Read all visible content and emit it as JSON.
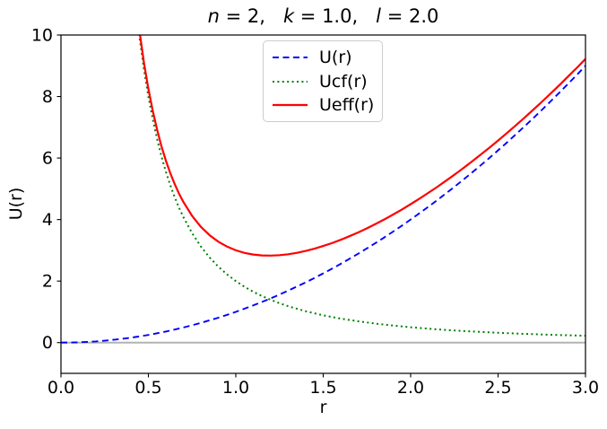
{
  "title": {
    "text": "n = 2,  k = 1.0,  l = 2.0",
    "separator": ",   ",
    "parts": [
      {
        "symbol": "n",
        "value": "2"
      },
      {
        "symbol": "k",
        "value": "1.0"
      },
      {
        "symbol": "l",
        "value": "2.0"
      }
    ]
  },
  "chart_data": {
    "type": "line",
    "title": "n = 2,  k = 1.0,  l = 2.0",
    "xlabel": "r",
    "ylabel": "U(r)",
    "xlim": [
      0.0,
      3.0
    ],
    "ylim": [
      -1,
      10
    ],
    "xticks": [
      0.0,
      0.5,
      1.0,
      1.5,
      2.0,
      2.5,
      3.0
    ],
    "xtick_labels": [
      "0.0",
      "0.5",
      "1.0",
      "1.5",
      "2.0",
      "2.5",
      "3.0"
    ],
    "yticks": [
      0,
      2,
      4,
      6,
      8,
      10
    ],
    "ytick_labels": [
      "0",
      "2",
      "4",
      "6",
      "8",
      "10"
    ],
    "grid": false,
    "legend": {
      "position": "upper center",
      "border_color": "#cccccc"
    },
    "zero_line": {
      "y": 0,
      "color": "#b3b3b3"
    },
    "parameters": {
      "n": 2,
      "k": 1.0,
      "l": 2.0
    },
    "x": [
      0,
      0.05,
      0.1,
      0.15,
      0.2,
      0.25,
      0.3,
      0.325,
      0.35,
      0.375,
      0.4,
      0.425,
      0.45,
      0.475,
      0.5,
      0.525,
      0.55,
      0.575,
      0.6,
      0.625,
      0.65,
      0.675,
      0.7,
      0.75,
      0.8,
      0.85,
      0.9,
      0.95,
      1.0,
      1.05,
      1.1,
      1.15,
      1.2,
      1.25,
      1.3,
      1.35,
      1.4,
      1.45,
      1.5,
      1.55,
      1.6,
      1.65,
      1.7,
      1.75,
      1.8,
      1.85,
      1.9,
      1.95,
      2.0,
      2.05,
      2.1,
      2.15,
      2.2,
      2.25,
      2.3,
      2.35,
      2.4,
      2.45,
      2.5,
      2.55,
      2.6,
      2.65,
      2.7,
      2.75,
      2.8,
      2.85,
      2.9,
      2.95,
      3.0
    ],
    "series": [
      {
        "name": "U(r)",
        "color": "#0000ff",
        "line_style": "dashed",
        "values": [
          0,
          0.003,
          0.01,
          0.023,
          0.04,
          0.063,
          0.09,
          0.106,
          0.123,
          0.141,
          0.16,
          0.181,
          0.203,
          0.226,
          0.25,
          0.276,
          0.303,
          0.331,
          0.36,
          0.391,
          0.423,
          0.456,
          0.49,
          0.563,
          0.64,
          0.723,
          0.81,
          0.903,
          1.0,
          1.103,
          1.21,
          1.323,
          1.44,
          1.563,
          1.69,
          1.823,
          1.96,
          2.103,
          2.25,
          2.403,
          2.56,
          2.723,
          2.89,
          3.063,
          3.24,
          3.423,
          3.61,
          3.803,
          4.0,
          4.203,
          4.41,
          4.623,
          4.84,
          5.063,
          5.29,
          5.523,
          5.76,
          6.003,
          6.25,
          6.503,
          6.76,
          7.023,
          7.29,
          7.563,
          7.84,
          8.123,
          8.41,
          8.703,
          9.0
        ]
      },
      {
        "name": "Ucf(r)",
        "color": "#008000",
        "line_style": "dotted",
        "values": [
          null,
          800,
          200,
          88.889,
          50,
          32,
          22.222,
          18.935,
          16.327,
          14.222,
          12.5,
          11.073,
          9.877,
          8.864,
          8.0,
          7.256,
          6.612,
          6.049,
          5.556,
          5.12,
          4.734,
          4.39,
          4.082,
          3.556,
          3.125,
          2.768,
          2.469,
          2.216,
          2.0,
          1.814,
          1.653,
          1.512,
          1.389,
          1.28,
          1.183,
          1.097,
          1.02,
          0.951,
          0.889,
          0.832,
          0.781,
          0.735,
          0.692,
          0.653,
          0.617,
          0.584,
          0.554,
          0.526,
          0.5,
          0.476,
          0.454,
          0.433,
          0.413,
          0.395,
          0.378,
          0.362,
          0.347,
          0.333,
          0.32,
          0.308,
          0.296,
          0.285,
          0.274,
          0.264,
          0.255,
          0.246,
          0.238,
          0.23,
          0.222
        ]
      },
      {
        "name": "Ueff(r)",
        "color": "#ff0000",
        "line_style": "solid",
        "values": [
          null,
          800.003,
          200.01,
          88.911,
          50.04,
          32.063,
          22.312,
          19.041,
          16.449,
          14.363,
          12.66,
          11.253,
          10.079,
          9.09,
          8.25,
          7.532,
          6.914,
          6.38,
          5.916,
          5.511,
          5.156,
          4.845,
          4.572,
          4.118,
          3.765,
          3.491,
          3.279,
          3.119,
          3.0,
          2.917,
          2.863,
          2.835,
          2.829,
          2.843,
          2.873,
          2.92,
          2.98,
          3.054,
          3.139,
          3.235,
          3.341,
          3.457,
          3.582,
          3.716,
          3.857,
          4.007,
          4.164,
          4.329,
          4.5,
          4.678,
          4.864,
          5.055,
          5.253,
          5.458,
          5.668,
          5.885,
          6.107,
          6.336,
          6.57,
          6.81,
          7.056,
          7.307,
          7.564,
          7.827,
          8.095,
          8.369,
          8.648,
          8.932,
          9.222
        ]
      }
    ]
  }
}
